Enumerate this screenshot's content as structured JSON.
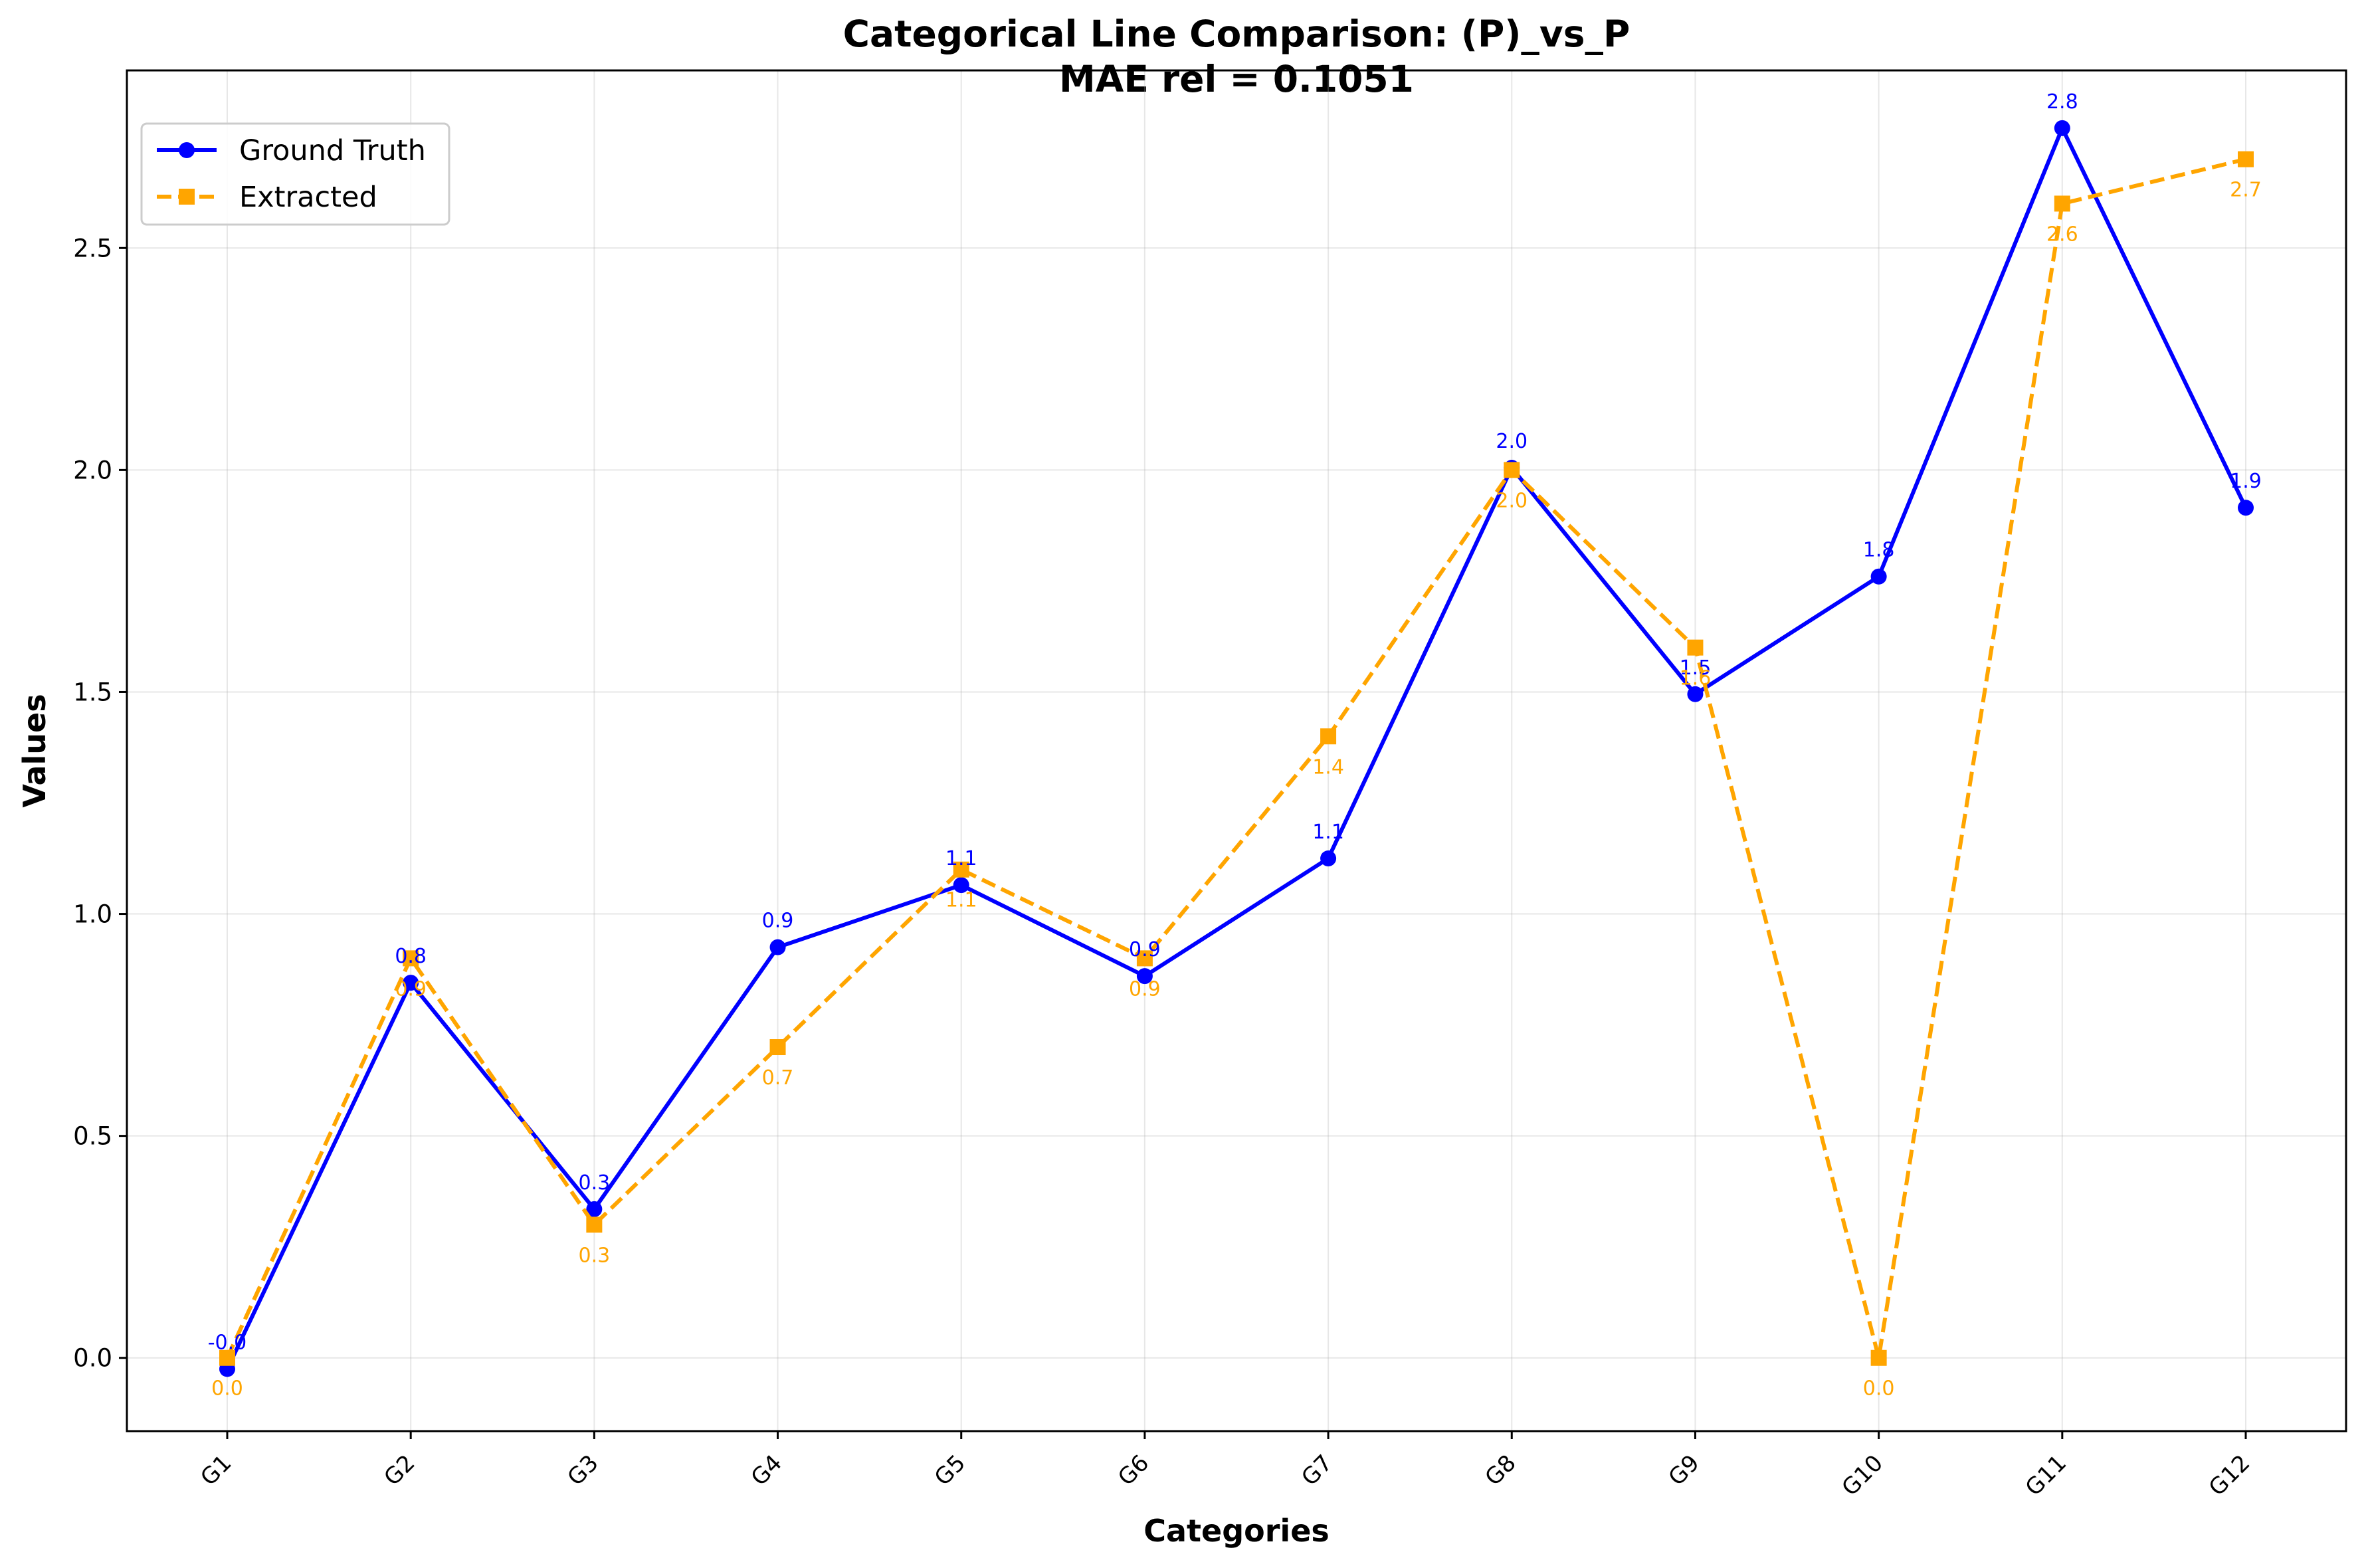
{
  "chart_data": {
    "type": "line",
    "title": "Categorical Line Comparison: (P)_vs_P",
    "subtitle": "MAE rel = 0.1051",
    "xlabel": "Categories",
    "ylabel": "Values",
    "categories": [
      "G1",
      "G2",
      "G3",
      "G4",
      "G5",
      "G6",
      "G7",
      "G8",
      "G9",
      "G10",
      "G11",
      "G12"
    ],
    "ylim": [
      -0.165,
      2.9
    ],
    "yticks": [
      0.0,
      0.5,
      1.0,
      1.5,
      2.0,
      2.5
    ],
    "ytick_labels": [
      "0.0",
      "0.5",
      "1.0",
      "1.5",
      "2.0",
      "2.5"
    ],
    "grid": true,
    "legend_position": "top-left",
    "series": [
      {
        "name": "Ground Truth",
        "color": "#0000ff",
        "line_style": "solid",
        "marker": "circle",
        "values": [
          -0.025,
          0.845,
          0.335,
          0.925,
          1.065,
          0.86,
          1.125,
          2.005,
          1.495,
          1.76,
          2.77,
          1.915
        ],
        "labels": [
          "-0.0",
          "0.8",
          "0.3",
          "0.9",
          "1.1",
          "0.9",
          "1.1",
          "2.0",
          "1.5",
          "1.8",
          "2.8",
          "1.9"
        ]
      },
      {
        "name": "Extracted",
        "color": "#ffa500",
        "line_style": "dashed",
        "marker": "square",
        "values": [
          0.0,
          0.9,
          0.3,
          0.7,
          1.1,
          0.9,
          1.4,
          2.0,
          1.6,
          0.0,
          2.6,
          2.7
        ],
        "labels": [
          "0.0",
          "0.9",
          "0.3",
          "0.7",
          "1.1",
          "0.9",
          "1.4",
          "2.0",
          "1.6",
          "0.0",
          "2.6",
          "2.7"
        ]
      }
    ]
  }
}
